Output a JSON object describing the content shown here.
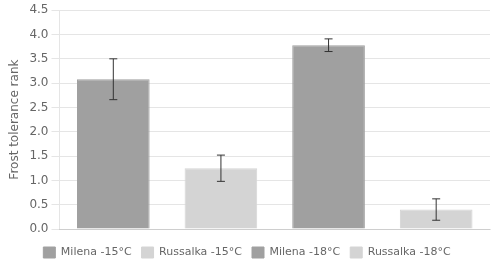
{
  "chart_data": {
    "type": "bar",
    "y_label": "Frost tolerance rank",
    "categories": [
      null,
      null,
      null,
      null
    ],
    "series": [
      {
        "name": "Milena -15°C",
        "color": "#a0a0a0",
        "values": [
          3.08,
          null,
          null,
          null
        ],
        "errors": [
          0.42,
          null,
          null,
          null
        ]
      },
      {
        "name": "Russalka -15°C",
        "color": "#d4d4d4",
        "values": [
          null,
          1.25,
          null,
          null
        ],
        "errors": [
          null,
          0.27,
          null,
          null
        ]
      },
      {
        "name": "Milena -18°C",
        "color": "#a0a0a0",
        "values": [
          null,
          null,
          3.78,
          null
        ],
        "errors": [
          null,
          null,
          0.13,
          null
        ]
      },
      {
        "name": "Russalka -18°C",
        "color": "#d4d4d4",
        "values": [
          null,
          null,
          null,
          0.4
        ],
        "errors": [
          null,
          null,
          null,
          0.22
        ]
      }
    ],
    "ylim": [
      0,
      4.5
    ],
    "yticks": [
      {
        "value": 0,
        "label": "0.0"
      },
      0.5,
      {
        "value": 1,
        "label": "1.0"
      },
      1.5,
      {
        "value": 2,
        "label": "2.0"
      },
      2.5,
      {
        "value": 3,
        "label": "3.0"
      },
      3.5,
      {
        "value": 4,
        "label": "4.0"
      },
      4.5
    ],
    "grid": true,
    "legend": "bottom",
    "tick_labels": "y"
  }
}
